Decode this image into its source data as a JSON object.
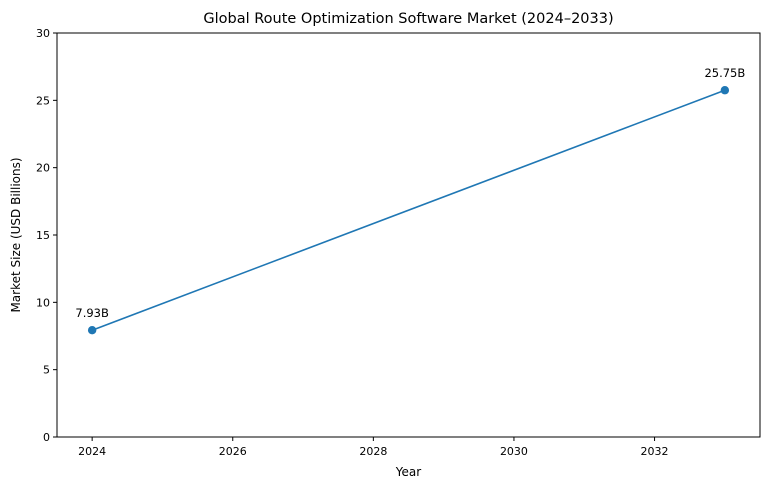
{
  "chart_data": {
    "type": "line",
    "title": "Global Route Optimization Software Market (2024–2033)",
    "xlabel": "Year",
    "ylabel": "Market Size (USD Billions)",
    "x": [
      2024,
      2033
    ],
    "series": [
      {
        "values": [
          7.93,
          25.75
        ],
        "labels": [
          "7.93B",
          "25.75B"
        ],
        "color": "#1f77b4",
        "marker": "circle"
      }
    ],
    "xlim": [
      2023.5,
      2033.5
    ],
    "ylim": [
      0,
      30
    ],
    "xticks": [
      2024,
      2026,
      2028,
      2030,
      2032
    ],
    "xtick_labels": [
      "2024",
      "2026",
      "2028",
      "2030",
      "2032"
    ],
    "yticks": [
      0,
      5,
      10,
      15,
      20,
      25,
      30
    ],
    "ytick_labels": [
      "0",
      "5",
      "10",
      "15",
      "20",
      "25",
      "30"
    ],
    "grid": false,
    "legend": "none"
  }
}
